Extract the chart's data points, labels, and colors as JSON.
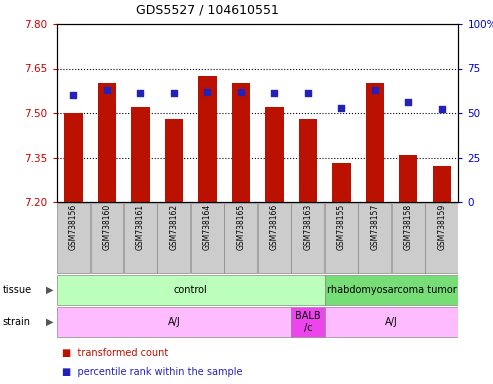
{
  "title": "GDS5527 / 104610551",
  "samples": [
    "GSM738156",
    "GSM738160",
    "GSM738161",
    "GSM738162",
    "GSM738164",
    "GSM738165",
    "GSM738166",
    "GSM738163",
    "GSM738155",
    "GSM738157",
    "GSM738158",
    "GSM738159"
  ],
  "transformed_count": [
    7.5,
    7.6,
    7.52,
    7.48,
    7.625,
    7.6,
    7.52,
    7.48,
    7.33,
    7.6,
    7.36,
    7.32
  ],
  "percentile_rank": [
    60,
    63,
    61,
    61,
    62,
    62,
    61,
    61,
    53,
    63,
    56,
    52
  ],
  "ymin": 7.2,
  "ymax": 7.8,
  "y2min": 0,
  "y2max": 100,
  "yticks": [
    7.2,
    7.35,
    7.5,
    7.65,
    7.8
  ],
  "y2ticks": [
    0,
    25,
    50,
    75,
    100
  ],
  "bar_color": "#bb1100",
  "dot_color": "#2222bb",
  "bar_width": 0.55,
  "tissue_control_color": "#bbffbb",
  "tissue_tumor_color": "#77dd77",
  "strain_aj_color": "#ffbbff",
  "strain_balb_color": "#ee44ee",
  "xticklabel_bg": "#cccccc",
  "grid_color": "black",
  "tick_color_left": "#cc0000",
  "tick_color_right": "#0000cc",
  "bg_plot": "white"
}
